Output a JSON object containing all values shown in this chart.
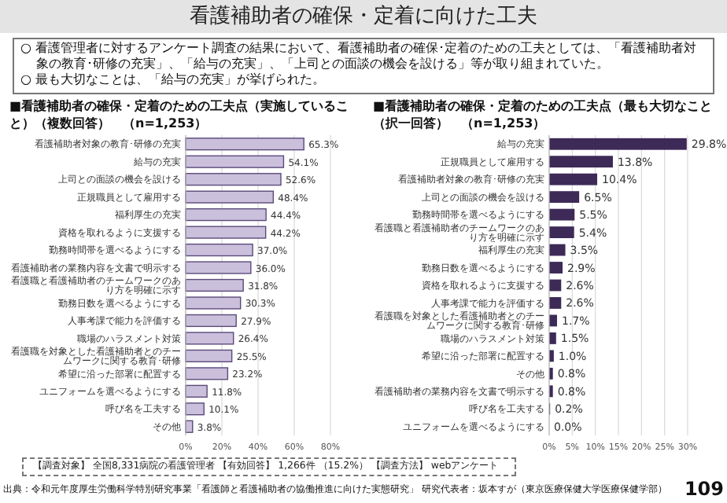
{
  "chart_data": [
    {
      "type": "other",
      "title": "看護補助者の確保・定着に向けた工夫",
      "annotations": [
        "○ 看護管理者に対するアンケート調査の結果において、看護補助者の確保･定着のための工夫としては、「看護補助者対象の教育･研修の充実」、「給与の充実」、「上司との面談の機会を設ける」等が取り組まれていた。",
        "○ 最も大切なことは、「給与の充実」が挙げられた。",
        "【調査対象】 全国8,331病院の看護管理者 【有効回答】 1,266件 （15.2%） 【調査方法】 webアンケート",
        "出典：令和元年度厚生労働科学特別研究事業「看護師と看護補助者の協働推進に向けた実態研究」 研究代表者：坂本すが（東京医療保健大学医療保健学部）",
        "109"
      ]
    },
    {
      "type": "bar",
      "orientation": "horizontal",
      "title": "■看護補助者の確保・定着のための工夫点（実施していること）（複数回答）　（n=1,253）",
      "color": "#cbc0dc",
      "grid": "x",
      "xlim": [
        0,
        80
      ],
      "xticks": [
        {
          "value": 0,
          "label": "0%"
        },
        {
          "value": 20,
          "label": "20%"
        },
        {
          "value": 40,
          "label": "40%"
        },
        {
          "value": 60,
          "label": "60%"
        },
        {
          "value": 80,
          "label": "80%"
        }
      ],
      "categories": [
        "看護補助者対象の教育･研修の充実",
        "給与の充実",
        "上司との面談の機会を設ける",
        "正規職員として雇用する",
        "福利厚生の充実",
        "資格を取れるように支援する",
        "勤務時間帯を選べるようにする",
        "看護補助者の業務内容を文書で明示する",
        "看護職と看護補助者のチームワークのあり方を明確に示す",
        "勤務日数を選べるようにする",
        "人事考課で能力を評価する",
        "職場のハラスメント対策",
        "看護職を対象とした看護補助者とのチームワークに関する教育･研修",
        "希望に沿った部署に配置する",
        "ユニフォームを選べるようにする",
        "呼び名を工夫する",
        "その他"
      ],
      "values": [
        65.3,
        54.1,
        52.6,
        48.4,
        44.4,
        44.2,
        37.0,
        36.0,
        31.8,
        30.3,
        27.9,
        26.4,
        25.5,
        23.2,
        11.8,
        10.1,
        3.8
      ],
      "value_labels": [
        "65.3%",
        "54.1%",
        "52.6%",
        "48.4%",
        "44.4%",
        "44.2%",
        "37.0%",
        "36.0%",
        "31.8%",
        "30.3%",
        "27.9%",
        "26.4%",
        "25.5%",
        "23.2%",
        "11.8%",
        "10.1%",
        "3.8%"
      ]
    },
    {
      "type": "bar",
      "orientation": "horizontal",
      "title": "■看護補助者の確保・定着のための工夫点（最も大切なこと（択一回答）　（n=1,253）",
      "color": "#3d2a57",
      "grid": "x",
      "xlim": [
        0,
        30
      ],
      "xticks": [
        {
          "value": 0,
          "label": "0%"
        },
        {
          "value": 5,
          "label": "5%"
        },
        {
          "value": 10,
          "label": "10%"
        },
        {
          "value": 15,
          "label": "15%"
        },
        {
          "value": 20,
          "label": "20%"
        },
        {
          "value": 25,
          "label": "25%"
        },
        {
          "value": 30,
          "label": "30%"
        }
      ],
      "categories": [
        "給与の充実",
        "正規職員として雇用する",
        "看護補助者対象の教育･研修の充実",
        "上司との面談の機会を設ける",
        "勤務時間帯を選べるようにする",
        "看護職と看護補助者のチームワークのあり方を明確に示す",
        "福利厚生の充実",
        "勤務日数を選べるようにする",
        "資格を取れるように支援する",
        "人事考課で能力を評価する",
        "看護職を対象とした看護補助者とのチームワークに関する教育･研修",
        "職場のハラスメント対策",
        "希望に沿った部署に配置する",
        "その他",
        "看護補助者の業務内容を文書で明示する",
        "呼び名を工夫する",
        "ユニフォームを選べるようにする"
      ],
      "values": [
        29.8,
        13.8,
        10.4,
        6.5,
        5.5,
        5.4,
        3.5,
        2.9,
        2.6,
        2.6,
        1.7,
        1.5,
        1.0,
        0.8,
        0.8,
        0.2,
        0.0
      ],
      "value_labels": [
        "29.8%",
        "13.8%",
        "10.4%",
        "6.5%",
        "5.5%",
        "5.4%",
        "3.5%",
        "2.9%",
        "2.6%",
        "2.6%",
        "1.7%",
        "1.5%",
        "1.0%",
        "0.8%",
        "0.8%",
        "0.2%",
        "0.0%"
      ]
    }
  ]
}
